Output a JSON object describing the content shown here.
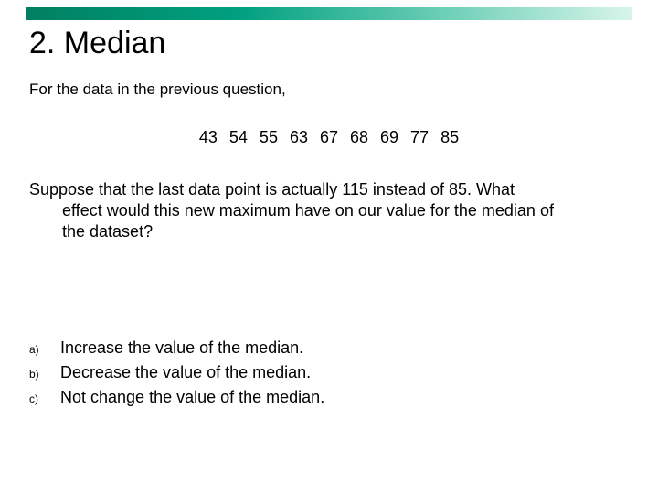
{
  "title_bar": {
    "gradient_from": "#008060",
    "gradient_to": "#d8f5ea"
  },
  "title": "2. Median",
  "intro": "For the data in the previous question,",
  "data_values": "43  54  55  63  67  68  69  77  85",
  "question": {
    "line1": "Suppose that the last data point is actually 115 instead of 85.  What",
    "line2": "effect would this new maximum have on our value for the median of",
    "line3": "the dataset?"
  },
  "options": [
    {
      "label": "a)",
      "text": "Increase the value of the median."
    },
    {
      "label": "b)",
      "text": "Decrease the value of the median."
    },
    {
      "label": "c)",
      "text": "Not change the value of the median."
    }
  ],
  "typography": {
    "title_fontsize": 34,
    "body_fontsize": 18,
    "intro_fontsize": 17,
    "option_label_fontsize": 12,
    "font_family": "Arial",
    "text_color": "#000000",
    "background_color": "#ffffff"
  }
}
